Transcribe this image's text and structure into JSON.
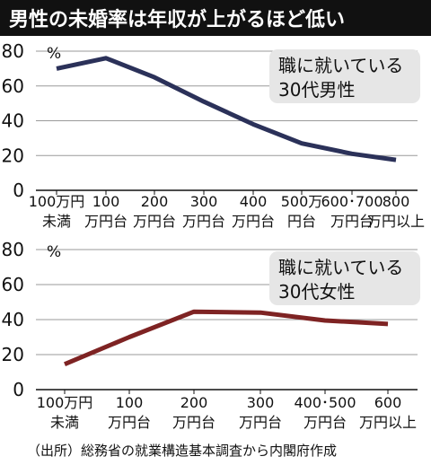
{
  "title": "男性の未婚率は年収が上がるほど低い",
  "source": "（出所）総務省の就業構造基本調査から内閣府作成",
  "colors": {
    "title_bar": "#111111",
    "title_text": "#ffffff",
    "male_line": "#2b3159",
    "female_line": "#7e2323",
    "grid": "#9a9a9a",
    "annotation_bg": "#e6e6e6",
    "text": "#111111"
  },
  "chart_data": [
    {
      "type": "line",
      "unit": "%",
      "ylim": [
        0,
        80
      ],
      "yticks": [
        "0",
        "20",
        "40",
        "60",
        "80"
      ],
      "grid": true,
      "annotation": [
        "職に就いている",
        "30代男性"
      ],
      "categories": [
        [
          "100万円",
          "未満"
        ],
        [
          "100",
          "万円台"
        ],
        [
          "200",
          "万円台"
        ],
        [
          "300",
          "万円台"
        ],
        [
          "400",
          "万円台"
        ],
        [
          "500万",
          "円台"
        ],
        [
          "600･700",
          "万円台"
        ],
        [
          "800",
          "万円以上"
        ]
      ],
      "series": [
        {
          "values": [
            70,
            76,
            65,
            51,
            38,
            27,
            21,
            17.5
          ]
        }
      ]
    },
    {
      "type": "line",
      "unit": "%",
      "ylim": [
        0,
        80
      ],
      "yticks": [
        "0",
        "20",
        "40",
        "60",
        "80"
      ],
      "grid": true,
      "annotation": [
        "職に就いている",
        "30代女性"
      ],
      "categories": [
        [
          "100万円",
          "未満"
        ],
        [
          "100",
          "万円台"
        ],
        [
          "200",
          "万円台"
        ],
        [
          "300",
          "万円台"
        ],
        [
          "400･500",
          "万円台"
        ],
        [
          "600",
          "万円以上"
        ]
      ],
      "series": [
        {
          "values": [
            14.5,
            30,
            44.5,
            44,
            39.5,
            37.5
          ]
        }
      ]
    }
  ]
}
